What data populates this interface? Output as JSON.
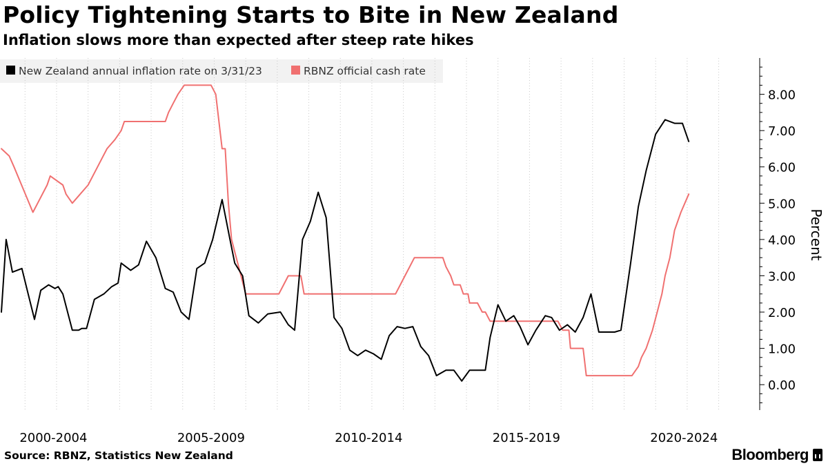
{
  "title": "Policy Tightening Starts to Bite in New Zealand",
  "subtitle": "Inflation slows more than expected after steep rate hikes",
  "source": "Source: RBNZ, Statistics New Zealand",
  "brand": "Bloomberg",
  "chart_data": {
    "type": "line",
    "ylabel": "Percent",
    "ylim": [
      -0.7,
      9.0
    ],
    "y_ticks": [
      0,
      1,
      2,
      3,
      4,
      5,
      6,
      7,
      8
    ],
    "y_tick_labels": [
      "0.00",
      "1.00",
      "2.00",
      "3.00",
      "4.00",
      "5.00",
      "6.00",
      "7.00",
      "8.00"
    ],
    "xlim": [
      1999.75,
      2023.8
    ],
    "x_tick_labels": [
      "2000-2004",
      "2005-2009",
      "2010-2014",
      "2015-2019",
      "2020-2024"
    ],
    "x_tick_label_centers": [
      2001.4,
      2006.4,
      2011.4,
      2016.4,
      2021.4
    ],
    "x_ticks": [
      2000.5,
      2001.5,
      2002.5,
      2003.5,
      2004.5,
      2005.5,
      2006.5,
      2007.5,
      2008.5,
      2009.5,
      2010.5,
      2011.5,
      2012.5,
      2013.5,
      2014.5,
      2015.5,
      2016.5,
      2017.5,
      2018.5,
      2019.5,
      2020.5,
      2021.5,
      2022.5
    ],
    "grid": "vertical-dotted",
    "legend_position": "top-left",
    "series": [
      {
        "name": "New Zealand annual inflation rate on 3/31/23",
        "color": "#000000",
        "points": [
          [
            1999.75,
            2.0
          ],
          [
            1999.9,
            4.0
          ],
          [
            2000.1,
            3.1
          ],
          [
            2000.4,
            3.2
          ],
          [
            2000.6,
            2.5
          ],
          [
            2000.8,
            1.8
          ],
          [
            2001.0,
            2.6
          ],
          [
            2001.25,
            2.75
          ],
          [
            2001.45,
            2.65
          ],
          [
            2001.55,
            2.7
          ],
          [
            2001.7,
            2.5
          ],
          [
            2002.0,
            1.5
          ],
          [
            2002.2,
            1.5
          ],
          [
            2002.3,
            1.55
          ],
          [
            2002.45,
            1.55
          ],
          [
            2002.7,
            2.35
          ],
          [
            2003.0,
            2.5
          ],
          [
            2003.25,
            2.7
          ],
          [
            2003.45,
            2.8
          ],
          [
            2003.55,
            3.35
          ],
          [
            2003.85,
            3.15
          ],
          [
            2004.1,
            3.3
          ],
          [
            2004.35,
            3.95
          ],
          [
            2004.65,
            3.5
          ],
          [
            2004.95,
            2.65
          ],
          [
            2005.2,
            2.55
          ],
          [
            2005.45,
            2.0
          ],
          [
            2005.7,
            1.8
          ],
          [
            2005.95,
            3.2
          ],
          [
            2006.2,
            3.35
          ],
          [
            2006.45,
            4.0
          ],
          [
            2006.75,
            5.1
          ],
          [
            2007.0,
            4.0
          ],
          [
            2007.15,
            3.35
          ],
          [
            2007.4,
            3.0
          ],
          [
            2007.6,
            1.9
          ],
          [
            2007.9,
            1.7
          ],
          [
            2008.2,
            1.95
          ],
          [
            2008.6,
            2.0
          ],
          [
            2008.85,
            1.65
          ],
          [
            2009.05,
            1.5
          ],
          [
            2009.3,
            4.0
          ],
          [
            2009.55,
            4.5
          ],
          [
            2009.8,
            5.3
          ],
          [
            2010.05,
            4.6
          ],
          [
            2010.3,
            1.85
          ],
          [
            2010.55,
            1.55
          ],
          [
            2010.8,
            0.95
          ],
          [
            2011.05,
            0.8
          ],
          [
            2011.3,
            0.95
          ],
          [
            2011.55,
            0.85
          ],
          [
            2011.8,
            0.7
          ],
          [
            2012.05,
            1.35
          ],
          [
            2012.3,
            1.6
          ],
          [
            2012.55,
            1.55
          ],
          [
            2012.8,
            1.6
          ],
          [
            2013.05,
            1.05
          ],
          [
            2013.3,
            0.8
          ],
          [
            2013.55,
            0.25
          ],
          [
            2013.85,
            0.4
          ],
          [
            2014.1,
            0.4
          ],
          [
            2014.35,
            0.1
          ],
          [
            2014.6,
            0.4
          ],
          [
            2014.85,
            0.4
          ],
          [
            2015.1,
            0.4
          ],
          [
            2015.25,
            1.3
          ],
          [
            2015.5,
            2.2
          ],
          [
            2015.75,
            1.75
          ],
          [
            2016.0,
            1.9
          ],
          [
            2016.2,
            1.6
          ],
          [
            2016.45,
            1.1
          ],
          [
            2016.7,
            1.5
          ],
          [
            2017.0,
            1.9
          ],
          [
            2017.2,
            1.85
          ],
          [
            2017.45,
            1.5
          ],
          [
            2017.7,
            1.65
          ],
          [
            2017.95,
            1.45
          ],
          [
            2018.2,
            1.85
          ],
          [
            2018.45,
            2.5
          ],
          [
            2018.7,
            1.45
          ],
          [
            2018.95,
            1.45
          ],
          [
            2019.2,
            1.45
          ],
          [
            2019.4,
            1.5
          ],
          [
            2019.7,
            3.3
          ],
          [
            2019.95,
            4.9
          ],
          [
            2020.2,
            5.9
          ],
          [
            2020.5,
            6.9
          ],
          [
            2020.8,
            7.3
          ],
          [
            2021.1,
            7.2
          ],
          [
            2021.35,
            7.2
          ],
          [
            2021.55,
            6.7
          ]
        ]
      },
      {
        "name": "RBNZ official cash rate",
        "color": "#f07070",
        "points": [
          [
            1999.75,
            6.5
          ],
          [
            2000.0,
            6.3
          ],
          [
            2000.15,
            6.0
          ],
          [
            2000.75,
            4.75
          ],
          [
            2000.9,
            5.0
          ],
          [
            2001.2,
            5.5
          ],
          [
            2001.3,
            5.75
          ],
          [
            2001.7,
            5.5
          ],
          [
            2001.8,
            5.25
          ],
          [
            2002.0,
            5.0
          ],
          [
            2002.25,
            5.25
          ],
          [
            2002.5,
            5.5
          ],
          [
            2002.65,
            5.75
          ],
          [
            2002.8,
            6.0
          ],
          [
            2002.95,
            6.25
          ],
          [
            2003.1,
            6.5
          ],
          [
            2003.35,
            6.75
          ],
          [
            2003.55,
            7.0
          ],
          [
            2003.65,
            7.25
          ],
          [
            2004.0,
            7.25
          ],
          [
            2004.75,
            7.25
          ],
          [
            2004.95,
            7.25
          ],
          [
            2005.05,
            7.5
          ],
          [
            2005.2,
            7.75
          ],
          [
            2005.35,
            8.0
          ],
          [
            2005.55,
            8.25
          ],
          [
            2006.4,
            8.25
          ],
          [
            2006.55,
            8.0
          ],
          [
            2006.75,
            6.5
          ],
          [
            2006.85,
            6.5
          ],
          [
            2006.95,
            5.0
          ],
          [
            2007.05,
            4.0
          ],
          [
            2007.2,
            3.5
          ],
          [
            2007.35,
            3.0
          ],
          [
            2007.5,
            2.5
          ],
          [
            2008.1,
            2.5
          ],
          [
            2008.55,
            2.5
          ],
          [
            2008.7,
            2.75
          ],
          [
            2008.85,
            3.0
          ],
          [
            2009.25,
            3.0
          ],
          [
            2009.35,
            2.5
          ],
          [
            2010.5,
            2.5
          ],
          [
            2012.25,
            2.5
          ],
          [
            2012.4,
            2.75
          ],
          [
            2012.55,
            3.0
          ],
          [
            2012.7,
            3.25
          ],
          [
            2012.85,
            3.5
          ],
          [
            2013.6,
            3.5
          ],
          [
            2013.75,
            3.5
          ],
          [
            2013.85,
            3.25
          ],
          [
            2014.0,
            3.0
          ],
          [
            2014.1,
            2.75
          ],
          [
            2014.3,
            2.75
          ],
          [
            2014.4,
            2.5
          ],
          [
            2014.55,
            2.5
          ],
          [
            2014.6,
            2.25
          ],
          [
            2014.85,
            2.25
          ],
          [
            2015.0,
            2.0
          ],
          [
            2015.1,
            2.0
          ],
          [
            2015.25,
            1.75
          ],
          [
            2017.25,
            1.75
          ],
          [
            2017.4,
            1.75
          ],
          [
            2017.55,
            1.5
          ],
          [
            2017.75,
            1.5
          ],
          [
            2017.8,
            1.0
          ],
          [
            2018.2,
            1.0
          ],
          [
            2018.3,
            0.25
          ],
          [
            2019.75,
            0.25
          ],
          [
            2019.95,
            0.5
          ],
          [
            2020.05,
            0.75
          ],
          [
            2020.2,
            1.0
          ],
          [
            2020.4,
            1.5
          ],
          [
            2020.55,
            2.0
          ],
          [
            2020.7,
            2.5
          ],
          [
            2020.8,
            3.0
          ],
          [
            2020.95,
            3.5
          ],
          [
            2021.1,
            4.25
          ],
          [
            2021.3,
            4.75
          ],
          [
            2021.55,
            5.25
          ]
        ]
      }
    ]
  }
}
